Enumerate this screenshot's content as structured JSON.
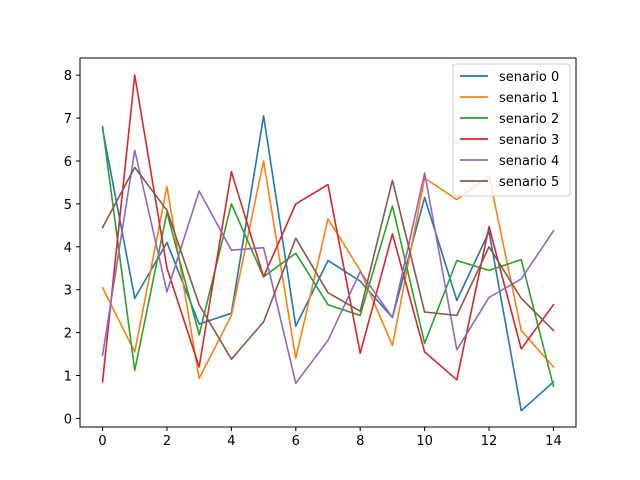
{
  "chart_data": {
    "type": "line",
    "title": "",
    "xlabel": "",
    "ylabel": "",
    "xlim": [
      -0.7,
      14.7
    ],
    "ylim": [
      -0.2,
      8.4
    ],
    "xticks": [
      0,
      2,
      4,
      6,
      8,
      10,
      12,
      14
    ],
    "yticks": [
      0,
      1,
      2,
      3,
      4,
      5,
      6,
      7,
      8
    ],
    "grid": false,
    "legend_position": "top-right",
    "x": [
      0,
      1,
      2,
      3,
      4,
      5,
      6,
      7,
      8,
      9,
      10,
      11,
      12,
      13,
      14
    ],
    "series": [
      {
        "name": "senario 0",
        "color": "#1f77b4",
        "values": [
          6.75,
          2.8,
          4.1,
          2.2,
          2.45,
          7.05,
          2.15,
          3.68,
          3.2,
          2.35,
          5.15,
          2.75,
          4.35,
          0.18,
          0.85
        ]
      },
      {
        "name": "senario 1",
        "color": "#ff7f0e",
        "values": [
          3.05,
          1.55,
          5.4,
          0.93,
          2.4,
          6.0,
          1.4,
          4.65,
          3.45,
          1.7,
          5.6,
          5.1,
          5.65,
          2.05,
          1.2
        ]
      },
      {
        "name": "senario 2",
        "color": "#2ca02c",
        "values": [
          6.8,
          1.12,
          4.8,
          1.95,
          5.0,
          3.3,
          3.85,
          2.65,
          2.4,
          4.95,
          1.75,
          3.68,
          3.45,
          3.7,
          0.75
        ]
      },
      {
        "name": "senario 3",
        "color": "#d62728",
        "values": [
          0.85,
          8.0,
          3.5,
          1.2,
          5.75,
          3.3,
          5.0,
          5.45,
          1.52,
          4.3,
          1.55,
          0.9,
          4.47,
          1.62,
          2.65
        ]
      },
      {
        "name": "senario 4",
        "color": "#9467bd",
        "values": [
          1.47,
          6.25,
          2.95,
          5.3,
          3.92,
          3.98,
          0.82,
          1.82,
          3.42,
          2.35,
          5.72,
          1.6,
          2.82,
          3.25,
          4.37
        ]
      },
      {
        "name": "senario 5",
        "color": "#8c564b",
        "values": [
          4.45,
          5.85,
          4.85,
          2.65,
          1.38,
          2.25,
          4.2,
          2.93,
          2.5,
          5.55,
          2.48,
          2.4,
          4.0,
          2.8,
          2.05
        ]
      }
    ]
  }
}
